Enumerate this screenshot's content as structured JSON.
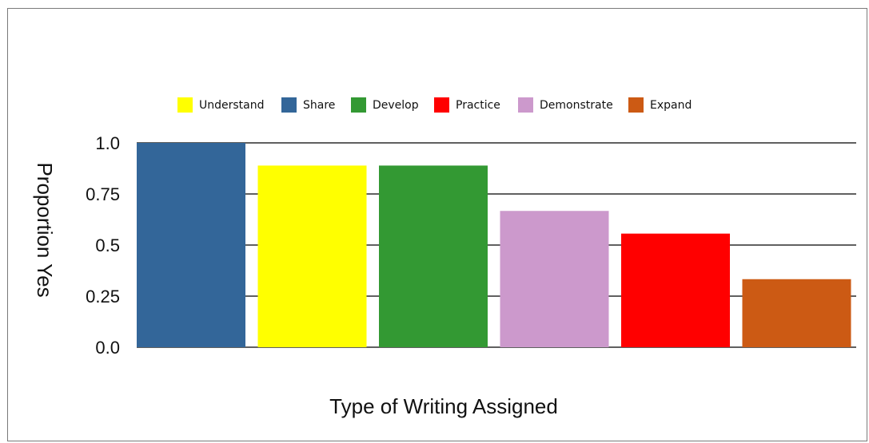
{
  "chart_data": {
    "type": "bar",
    "categories": [
      "Share",
      "Understand",
      "Develop",
      "Demonstrate",
      "Practice",
      "Expand"
    ],
    "values": [
      1.0,
      0.889,
      0.889,
      0.667,
      0.556,
      0.333
    ],
    "colors": [
      "#336699",
      "#ffff00",
      "#339933",
      "#cc99cc",
      "#ff0000",
      "#cc5a14"
    ],
    "legend": [
      {
        "name": "Understand",
        "color": "#ffff00"
      },
      {
        "name": "Share",
        "color": "#336699"
      },
      {
        "name": "Develop",
        "color": "#339933"
      },
      {
        "name": "Practice",
        "color": "#ff0000"
      },
      {
        "name": "Demonstrate",
        "color": "#cc99cc"
      },
      {
        "name": "Expand",
        "color": "#cc5a14"
      }
    ],
    "title": "",
    "xlabel": "Type of Writing Assigned",
    "ylabel": "Proportion Yes",
    "ylim": [
      0,
      1
    ],
    "yticks": [
      0,
      0.25,
      0.5,
      0.75,
      1
    ],
    "ytick_labels": [
      "0.0",
      "0.25",
      "0.5",
      "0.75",
      "1.0"
    ],
    "grid": true,
    "legend_position": "top"
  }
}
